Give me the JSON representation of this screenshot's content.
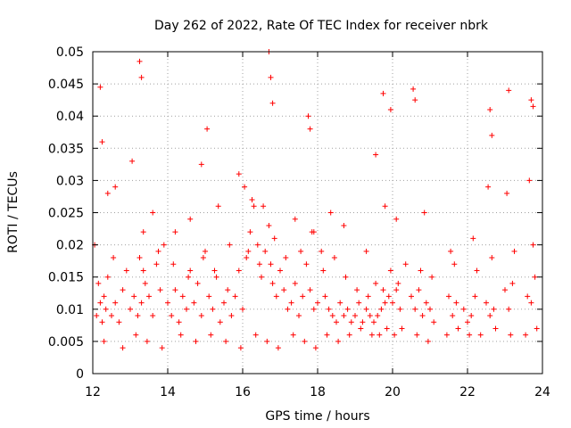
{
  "chart_data": {
    "type": "scatter",
    "title": "Day 262 of 2022, Rate Of TEC Index for receiver nbrk",
    "xlabel": "GPS time / hours",
    "ylabel": "ROTI / TECUs",
    "xlim": [
      12,
      24
    ],
    "ylim": [
      0,
      0.05
    ],
    "x_ticks": [
      "12",
      "14",
      "16",
      "18",
      "20",
      "22",
      "24"
    ],
    "y_ticks": [
      "0",
      "0.005",
      "0.01",
      "0.015",
      "0.02",
      "0.025",
      "0.03",
      "0.035",
      "0.04",
      "0.045",
      "0.05"
    ],
    "grid": true,
    "marker": "+",
    "series_color": "#ff0000",
    "series": [
      {
        "name": "ROTI",
        "x": [
          12.1,
          12.15,
          12.2,
          12.25,
          12.3,
          12.35,
          12.4,
          12.5,
          12.6,
          12.7,
          12.8,
          12.9,
          13.0,
          13.1,
          13.2,
          13.25,
          13.3,
          13.35,
          13.4,
          13.5,
          13.6,
          13.7,
          13.8,
          13.9,
          14.0,
          14.1,
          14.2,
          14.3,
          14.4,
          14.5,
          14.6,
          14.7,
          14.8,
          14.9,
          15.0,
          15.1,
          15.2,
          15.3,
          15.4,
          15.5,
          15.6,
          15.7,
          15.8,
          15.9,
          16.0,
          16.1,
          16.2,
          16.3,
          16.4,
          16.5,
          16.6,
          16.7,
          16.75,
          16.8,
          16.9,
          17.0,
          17.1,
          17.2,
          17.3,
          17.4,
          17.5,
          17.6,
          17.7,
          17.8,
          17.9,
          18.0,
          18.1,
          18.2,
          18.3,
          18.4,
          18.5,
          18.6,
          18.7,
          18.8,
          18.9,
          19.0,
          19.1,
          19.2,
          19.3,
          19.4,
          19.5,
          19.6,
          19.7,
          19.8,
          19.9,
          20.0,
          20.1,
          20.2,
          20.5,
          20.6,
          20.7,
          20.8,
          20.9,
          21.0,
          21.1,
          21.5,
          21.6,
          21.7,
          21.9,
          22.0,
          22.1,
          22.2,
          22.5,
          22.6,
          22.7,
          23.0,
          23.1,
          23.2,
          23.6,
          23.7,
          23.8,
          12.2,
          12.25,
          13.25,
          13.3,
          14.9,
          15.05,
          16.05,
          16.7,
          16.75,
          16.8,
          17.75,
          17.8,
          19.55,
          19.75,
          19.95,
          20.55,
          20.6,
          22.6,
          22.65,
          23.1,
          23.7,
          23.75,
          12.4,
          12.6,
          13.05,
          13.6,
          14.2,
          14.6,
          15.35,
          15.9,
          16.25,
          16.55,
          17.4,
          17.9,
          18.35,
          18.7,
          19.3,
          19.8,
          20.1,
          20.85,
          21.55,
          22.15,
          22.55,
          23.05,
          23.65,
          12.3,
          12.8,
          13.15,
          13.45,
          13.85,
          14.35,
          14.75,
          15.15,
          15.55,
          15.95,
          16.35,
          16.65,
          16.95,
          17.35,
          17.65,
          17.95,
          18.25,
          18.55,
          18.85,
          19.15,
          19.45,
          19.65,
          19.85,
          20.05,
          20.25,
          20.65,
          20.95,
          21.45,
          21.75,
          22.05,
          22.35,
          22.75,
          23.15,
          23.55,
          23.85,
          12.05,
          12.55,
          13.35,
          13.75,
          14.15,
          14.55,
          14.95,
          15.25,
          15.65,
          16.15,
          16.45,
          16.85,
          17.15,
          17.55,
          17.85,
          18.15,
          18.45,
          18.75,
          19.05,
          19.35,
          19.55,
          19.75,
          19.95,
          20.15,
          20.35,
          20.75,
          21.05,
          21.65,
          22.25,
          22.65,
          23.25,
          23.75
        ],
        "y": [
          0.009,
          0.014,
          0.011,
          0.008,
          0.012,
          0.01,
          0.015,
          0.009,
          0.011,
          0.008,
          0.013,
          0.016,
          0.01,
          0.012,
          0.009,
          0.018,
          0.011,
          0.022,
          0.014,
          0.012,
          0.009,
          0.017,
          0.013,
          0.02,
          0.011,
          0.009,
          0.013,
          0.008,
          0.012,
          0.01,
          0.016,
          0.011,
          0.014,
          0.009,
          0.019,
          0.012,
          0.01,
          0.015,
          0.008,
          0.011,
          0.013,
          0.009,
          0.012,
          0.016,
          0.01,
          0.018,
          0.022,
          0.026,
          0.02,
          0.015,
          0.019,
          0.023,
          0.017,
          0.014,
          0.012,
          0.016,
          0.013,
          0.01,
          0.011,
          0.014,
          0.009,
          0.012,
          0.017,
          0.013,
          0.01,
          0.011,
          0.019,
          0.012,
          0.01,
          0.009,
          0.008,
          0.011,
          0.009,
          0.01,
          0.008,
          0.009,
          0.011,
          0.008,
          0.01,
          0.009,
          0.008,
          0.009,
          0.01,
          0.011,
          0.012,
          0.011,
          0.013,
          0.01,
          0.012,
          0.01,
          0.013,
          0.009,
          0.011,
          0.01,
          0.008,
          0.012,
          0.009,
          0.011,
          0.01,
          0.008,
          0.009,
          0.012,
          0.011,
          0.009,
          0.01,
          0.013,
          0.01,
          0.014,
          0.012,
          0.011,
          0.015,
          0.0445,
          0.036,
          0.0485,
          0.046,
          0.0325,
          0.038,
          0.029,
          0.05,
          0.046,
          0.042,
          0.04,
          0.038,
          0.034,
          0.0435,
          0.041,
          0.0442,
          0.0425,
          0.041,
          0.037,
          0.044,
          0.0425,
          0.0415,
          0.028,
          0.029,
          0.033,
          0.025,
          0.022,
          0.024,
          0.026,
          0.031,
          0.027,
          0.026,
          0.024,
          0.022,
          0.025,
          0.023,
          0.019,
          0.026,
          0.024,
          0.025,
          0.019,
          0.021,
          0.029,
          0.028,
          0.03,
          0.005,
          0.004,
          0.006,
          0.005,
          0.004,
          0.006,
          0.005,
          0.006,
          0.005,
          0.004,
          0.006,
          0.005,
          0.004,
          0.006,
          0.005,
          0.004,
          0.006,
          0.005,
          0.006,
          0.007,
          0.006,
          0.006,
          0.007,
          0.006,
          0.007,
          0.006,
          0.005,
          0.006,
          0.007,
          0.006,
          0.006,
          0.007,
          0.006,
          0.006,
          0.007,
          0.02,
          0.018,
          0.016,
          0.019,
          0.017,
          0.015,
          0.018,
          0.016,
          0.02,
          0.019,
          0.017,
          0.021,
          0.018,
          0.019,
          0.022,
          0.016,
          0.018,
          0.015,
          0.013,
          0.012,
          0.014,
          0.013,
          0.016,
          0.014,
          0.017,
          0.016,
          0.015,
          0.017,
          0.016,
          0.018,
          0.019,
          0.02
        ]
      }
    ]
  }
}
